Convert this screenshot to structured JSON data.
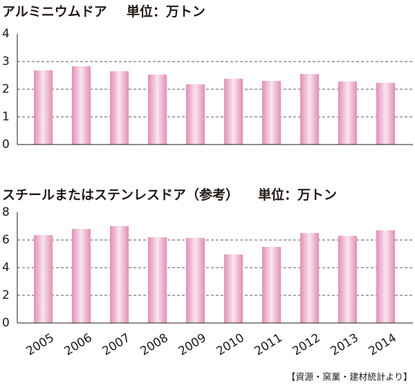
{
  "chart_data": [
    {
      "type": "bar",
      "title": "アルミニウムドア",
      "unit": "単位：万トン",
      "categories": [
        null,
        null,
        null,
        null,
        null,
        null,
        null,
        null,
        null,
        null
      ],
      "values": [
        2.68,
        2.83,
        2.65,
        2.53,
        2.18,
        2.38,
        2.3,
        2.55,
        2.28,
        2.23
      ],
      "ylim": [
        0,
        4
      ],
      "yticks": [
        0,
        1,
        2,
        3,
        4
      ],
      "grid": true
    },
    {
      "type": "bar",
      "title": "スチールまたはステンレスドア（参考）",
      "unit": "単位：万トン",
      "categories": [
        "2005",
        "2006",
        "2007",
        "2008",
        "2009",
        "2010",
        "2011",
        "2012",
        "2013",
        "2014"
      ],
      "values": [
        6.35,
        6.8,
        7.0,
        6.2,
        6.15,
        4.95,
        5.5,
        6.5,
        6.3,
        6.7
      ],
      "ylim": [
        0,
        8
      ],
      "yticks": [
        0,
        2,
        4,
        6,
        8
      ],
      "grid": true
    }
  ],
  "source": "【資源・窯業・建材統計より】"
}
